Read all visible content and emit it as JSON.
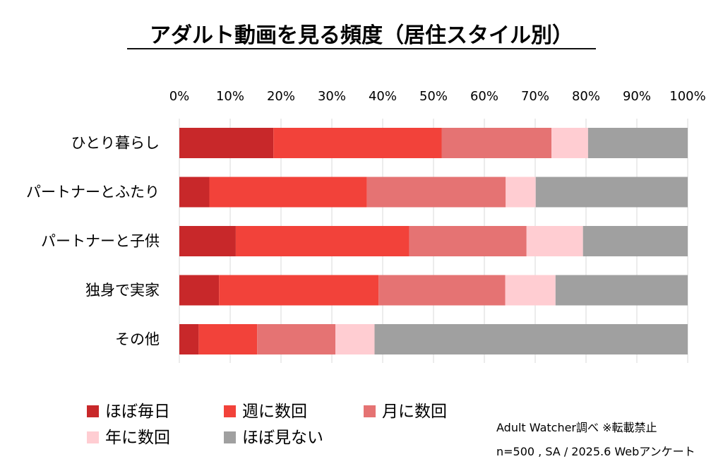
{
  "chart_data": {
    "type": "bar",
    "orientation": "horizontal",
    "stacked": true,
    "title": "アダルト動画を見る頻度（居住スタイル別）",
    "xlabel": "",
    "ylabel": "",
    "xlim": [
      0,
      100
    ],
    "x_ticks": [
      "0%",
      "10%",
      "20%",
      "30%",
      "40%",
      "50%",
      "60%",
      "70%",
      "80%",
      "90%",
      "100%"
    ],
    "grid": true,
    "legend_position": "bottom",
    "categories": [
      "ひとり暮らし",
      "パートナーとふたり",
      "パートナーと子供",
      "独身で実家",
      "その他"
    ],
    "series": [
      {
        "name": "ほぼ毎日",
        "color": "#c8282a",
        "values": [
          18.5,
          5.9,
          11.1,
          7.8,
          3.8
        ]
      },
      {
        "name": "週に数回",
        "color": "#f2423a",
        "values": [
          33.1,
          31.0,
          34.1,
          31.4,
          11.5
        ]
      },
      {
        "name": "月に数回",
        "color": "#e57373",
        "values": [
          21.6,
          27.3,
          23.1,
          24.9,
          15.4
        ]
      },
      {
        "name": "年に数回",
        "color": "#ffcdd2",
        "values": [
          7.2,
          5.9,
          11.1,
          9.9,
          7.7
        ]
      },
      {
        "name": "ほぼ見ない",
        "color": "#a0a0a0",
        "values": [
          19.6,
          29.9,
          20.6,
          26.0,
          61.6
        ]
      }
    ]
  },
  "notes": {
    "source": "Adult Watcher調べ  ※転載禁止",
    "sample": "n=500 , SA / 2025.6 Webアンケート"
  }
}
